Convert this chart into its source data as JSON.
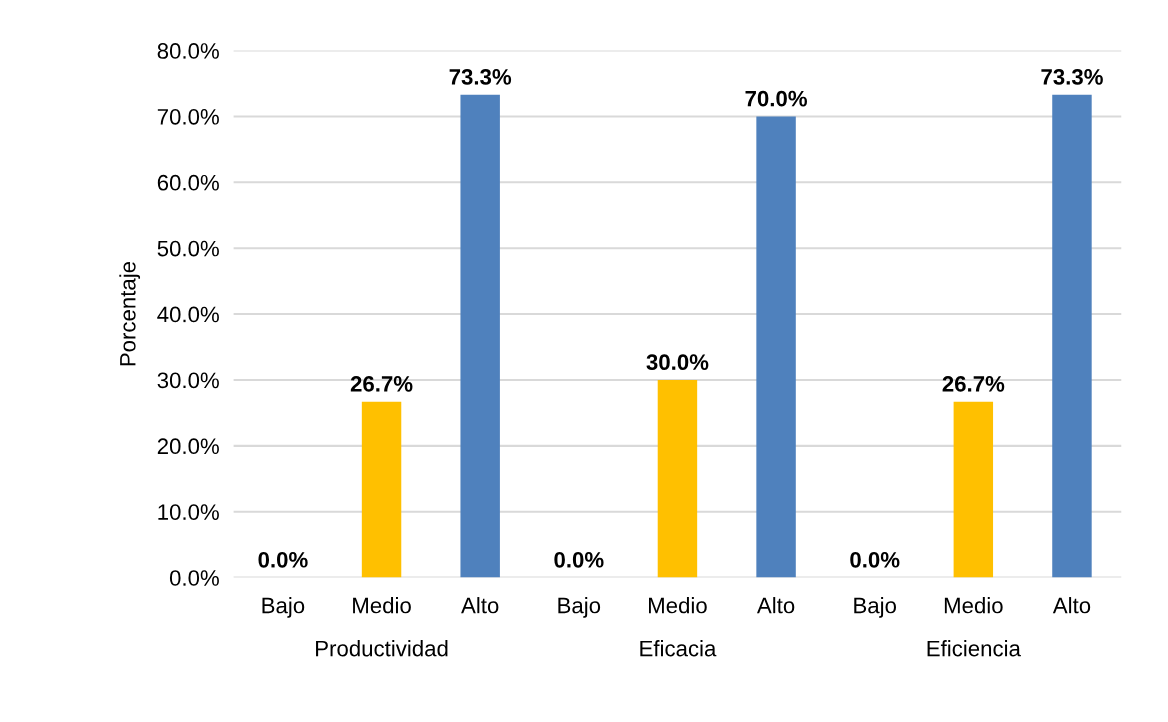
{
  "chart_data": {
    "type": "bar",
    "ylabel": "Porcentaje",
    "categories": [
      "Bajo",
      "Medio",
      "Alto",
      "Bajo",
      "Medio",
      "Alto",
      "Bajo",
      "Medio",
      "Alto"
    ],
    "values": [
      0.0,
      26.7,
      73.3,
      0.0,
      30.0,
      70.0,
      0.0,
      26.7,
      73.3
    ],
    "colors": [
      "#c00000",
      "#ffc000",
      "#4f81bd",
      "#c00000",
      "#ffc000",
      "#4f81bd",
      "#c00000",
      "#ffc000",
      "#4f81bd"
    ],
    "value_labels": [
      "0.0%",
      "26.7%",
      "73.3%",
      "0.0%",
      "30.0%",
      "70.0%",
      "0.0%",
      "26.7%",
      "73.3%"
    ],
    "annotations": [
      "Productividad",
      "Eficacia",
      "Eficiencia"
    ],
    "ylim": [
      0,
      80
    ],
    "yticks": [
      {
        "value": 0,
        "label": "0.0%"
      },
      {
        "value": 10,
        "label": "10.0%"
      },
      {
        "value": 20,
        "label": "20.0%"
      },
      {
        "value": 30,
        "label": "30.0%"
      },
      {
        "value": 40,
        "label": "40.0%"
      },
      {
        "value": 50,
        "label": "50.0%"
      },
      {
        "value": 60,
        "label": "60.0%"
      },
      {
        "value": 70,
        "label": "70.0%"
      },
      {
        "value": 80,
        "label": "80.0%"
      }
    ],
    "grid": "y"
  }
}
